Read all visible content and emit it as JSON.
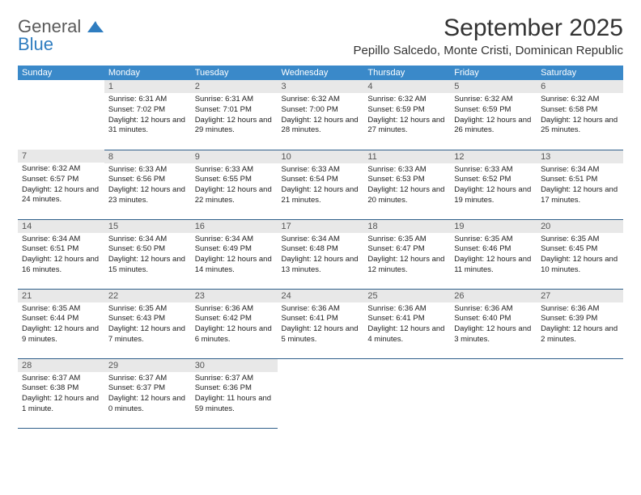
{
  "logo": {
    "line1": "General",
    "line2": "Blue"
  },
  "title": "September 2025",
  "location": "Pepillo Salcedo, Monte Cristi, Dominican Republic",
  "weekdays": [
    "Sunday",
    "Monday",
    "Tuesday",
    "Wednesday",
    "Thursday",
    "Friday",
    "Saturday"
  ],
  "colors": {
    "header_bg": "#3a89c9",
    "header_text": "#ffffff",
    "daynum_bg": "#e8e8e8",
    "border": "#2f5f8a",
    "logo_gray": "#5a5a5a",
    "logo_blue": "#2f7dc0"
  },
  "weeks": [
    [
      {
        "n": "",
        "sr": "",
        "ss": "",
        "dl": ""
      },
      {
        "n": "1",
        "sr": "Sunrise: 6:31 AM",
        "ss": "Sunset: 7:02 PM",
        "dl": "Daylight: 12 hours and 31 minutes."
      },
      {
        "n": "2",
        "sr": "Sunrise: 6:31 AM",
        "ss": "Sunset: 7:01 PM",
        "dl": "Daylight: 12 hours and 29 minutes."
      },
      {
        "n": "3",
        "sr": "Sunrise: 6:32 AM",
        "ss": "Sunset: 7:00 PM",
        "dl": "Daylight: 12 hours and 28 minutes."
      },
      {
        "n": "4",
        "sr": "Sunrise: 6:32 AM",
        "ss": "Sunset: 6:59 PM",
        "dl": "Daylight: 12 hours and 27 minutes."
      },
      {
        "n": "5",
        "sr": "Sunrise: 6:32 AM",
        "ss": "Sunset: 6:59 PM",
        "dl": "Daylight: 12 hours and 26 minutes."
      },
      {
        "n": "6",
        "sr": "Sunrise: 6:32 AM",
        "ss": "Sunset: 6:58 PM",
        "dl": "Daylight: 12 hours and 25 minutes."
      }
    ],
    [
      {
        "n": "7",
        "sr": "Sunrise: 6:32 AM",
        "ss": "Sunset: 6:57 PM",
        "dl": "Daylight: 12 hours and 24 minutes."
      },
      {
        "n": "8",
        "sr": "Sunrise: 6:33 AM",
        "ss": "Sunset: 6:56 PM",
        "dl": "Daylight: 12 hours and 23 minutes."
      },
      {
        "n": "9",
        "sr": "Sunrise: 6:33 AM",
        "ss": "Sunset: 6:55 PM",
        "dl": "Daylight: 12 hours and 22 minutes."
      },
      {
        "n": "10",
        "sr": "Sunrise: 6:33 AM",
        "ss": "Sunset: 6:54 PM",
        "dl": "Daylight: 12 hours and 21 minutes."
      },
      {
        "n": "11",
        "sr": "Sunrise: 6:33 AM",
        "ss": "Sunset: 6:53 PM",
        "dl": "Daylight: 12 hours and 20 minutes."
      },
      {
        "n": "12",
        "sr": "Sunrise: 6:33 AM",
        "ss": "Sunset: 6:52 PM",
        "dl": "Daylight: 12 hours and 19 minutes."
      },
      {
        "n": "13",
        "sr": "Sunrise: 6:34 AM",
        "ss": "Sunset: 6:51 PM",
        "dl": "Daylight: 12 hours and 17 minutes."
      }
    ],
    [
      {
        "n": "14",
        "sr": "Sunrise: 6:34 AM",
        "ss": "Sunset: 6:51 PM",
        "dl": "Daylight: 12 hours and 16 minutes."
      },
      {
        "n": "15",
        "sr": "Sunrise: 6:34 AM",
        "ss": "Sunset: 6:50 PM",
        "dl": "Daylight: 12 hours and 15 minutes."
      },
      {
        "n": "16",
        "sr": "Sunrise: 6:34 AM",
        "ss": "Sunset: 6:49 PM",
        "dl": "Daylight: 12 hours and 14 minutes."
      },
      {
        "n": "17",
        "sr": "Sunrise: 6:34 AM",
        "ss": "Sunset: 6:48 PM",
        "dl": "Daylight: 12 hours and 13 minutes."
      },
      {
        "n": "18",
        "sr": "Sunrise: 6:35 AM",
        "ss": "Sunset: 6:47 PM",
        "dl": "Daylight: 12 hours and 12 minutes."
      },
      {
        "n": "19",
        "sr": "Sunrise: 6:35 AM",
        "ss": "Sunset: 6:46 PM",
        "dl": "Daylight: 12 hours and 11 minutes."
      },
      {
        "n": "20",
        "sr": "Sunrise: 6:35 AM",
        "ss": "Sunset: 6:45 PM",
        "dl": "Daylight: 12 hours and 10 minutes."
      }
    ],
    [
      {
        "n": "21",
        "sr": "Sunrise: 6:35 AM",
        "ss": "Sunset: 6:44 PM",
        "dl": "Daylight: 12 hours and 9 minutes."
      },
      {
        "n": "22",
        "sr": "Sunrise: 6:35 AM",
        "ss": "Sunset: 6:43 PM",
        "dl": "Daylight: 12 hours and 7 minutes."
      },
      {
        "n": "23",
        "sr": "Sunrise: 6:36 AM",
        "ss": "Sunset: 6:42 PM",
        "dl": "Daylight: 12 hours and 6 minutes."
      },
      {
        "n": "24",
        "sr": "Sunrise: 6:36 AM",
        "ss": "Sunset: 6:41 PM",
        "dl": "Daylight: 12 hours and 5 minutes."
      },
      {
        "n": "25",
        "sr": "Sunrise: 6:36 AM",
        "ss": "Sunset: 6:41 PM",
        "dl": "Daylight: 12 hours and 4 minutes."
      },
      {
        "n": "26",
        "sr": "Sunrise: 6:36 AM",
        "ss": "Sunset: 6:40 PM",
        "dl": "Daylight: 12 hours and 3 minutes."
      },
      {
        "n": "27",
        "sr": "Sunrise: 6:36 AM",
        "ss": "Sunset: 6:39 PM",
        "dl": "Daylight: 12 hours and 2 minutes."
      }
    ],
    [
      {
        "n": "28",
        "sr": "Sunrise: 6:37 AM",
        "ss": "Sunset: 6:38 PM",
        "dl": "Daylight: 12 hours and 1 minute."
      },
      {
        "n": "29",
        "sr": "Sunrise: 6:37 AM",
        "ss": "Sunset: 6:37 PM",
        "dl": "Daylight: 12 hours and 0 minutes."
      },
      {
        "n": "30",
        "sr": "Sunrise: 6:37 AM",
        "ss": "Sunset: 6:36 PM",
        "dl": "Daylight: 11 hours and 59 minutes."
      },
      {
        "n": "",
        "sr": "",
        "ss": "",
        "dl": ""
      },
      {
        "n": "",
        "sr": "",
        "ss": "",
        "dl": ""
      },
      {
        "n": "",
        "sr": "",
        "ss": "",
        "dl": ""
      },
      {
        "n": "",
        "sr": "",
        "ss": "",
        "dl": ""
      }
    ]
  ]
}
